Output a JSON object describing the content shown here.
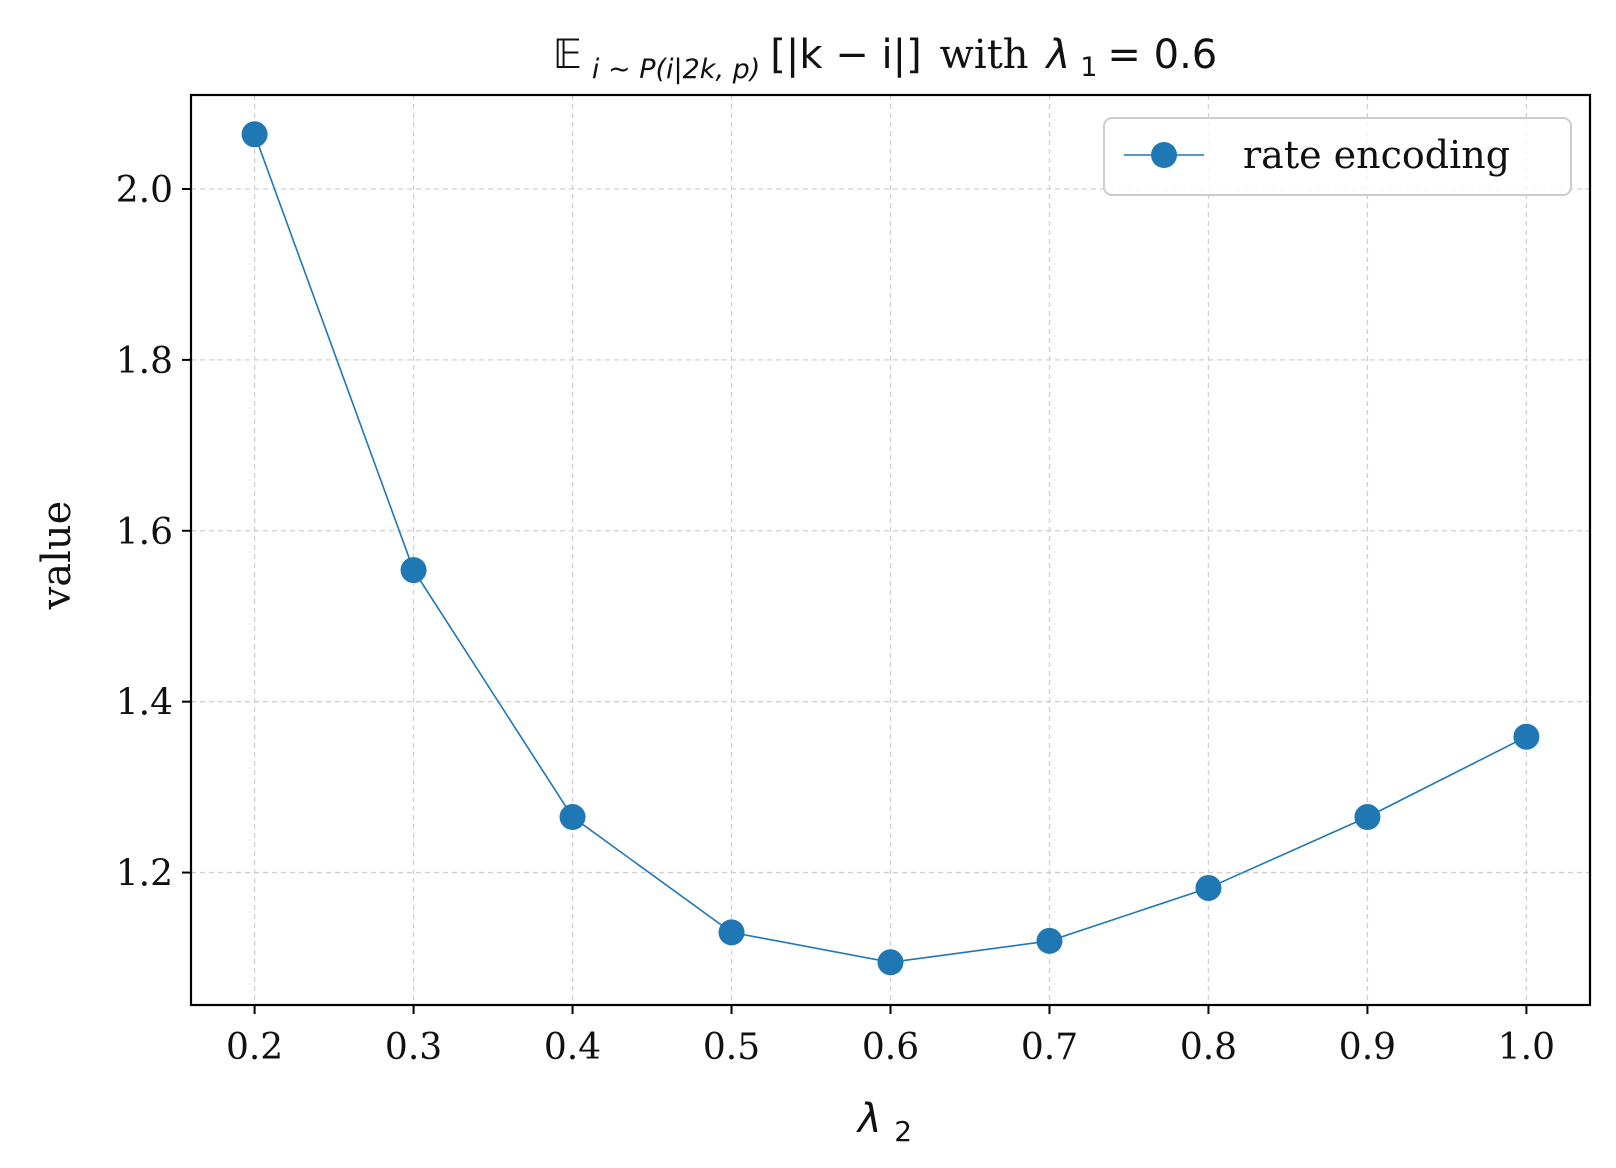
{
  "chart_data": {
    "type": "line",
    "title": {
      "expectation_symbol": "𝔼",
      "subscript": "i ∼ P(i|2k, p)",
      "expression": "[|k − i|]",
      "connector": "with",
      "condition": "λ₁ = 0.6",
      "lambda": "λ",
      "lambda_sub": "1",
      "equals_value": " = 0.6"
    },
    "xlabel": {
      "symbol": "λ",
      "sub": "2"
    },
    "ylabel": "value",
    "x": [
      0.2,
      0.3,
      0.4,
      0.5,
      0.6,
      0.7,
      0.8,
      0.9,
      1.0
    ],
    "series": [
      {
        "name": "rate encoding",
        "values": [
          2.064,
          1.554,
          1.265,
          1.13,
          1.095,
          1.12,
          1.182,
          1.265,
          1.359
        ],
        "color": "#1f77b4",
        "marker": "circle"
      }
    ],
    "xlim": [
      0.16,
      1.04
    ],
    "ylim": [
      1.045,
      2.11
    ],
    "xticks": [
      0.2,
      0.3,
      0.4,
      0.5,
      0.6,
      0.7,
      0.8,
      0.9,
      1.0
    ],
    "xtick_labels": [
      "0.2",
      "0.3",
      "0.4",
      "0.5",
      "0.6",
      "0.7",
      "0.8",
      "0.9",
      "1.0"
    ],
    "yticks": [
      1.2,
      1.4,
      1.6,
      1.8,
      2.0
    ],
    "ytick_labels": [
      "1.2",
      "1.4",
      "1.6",
      "1.8",
      "2.0"
    ],
    "grid": true,
    "grid_style": "dashed",
    "legend_position": "top-right"
  }
}
